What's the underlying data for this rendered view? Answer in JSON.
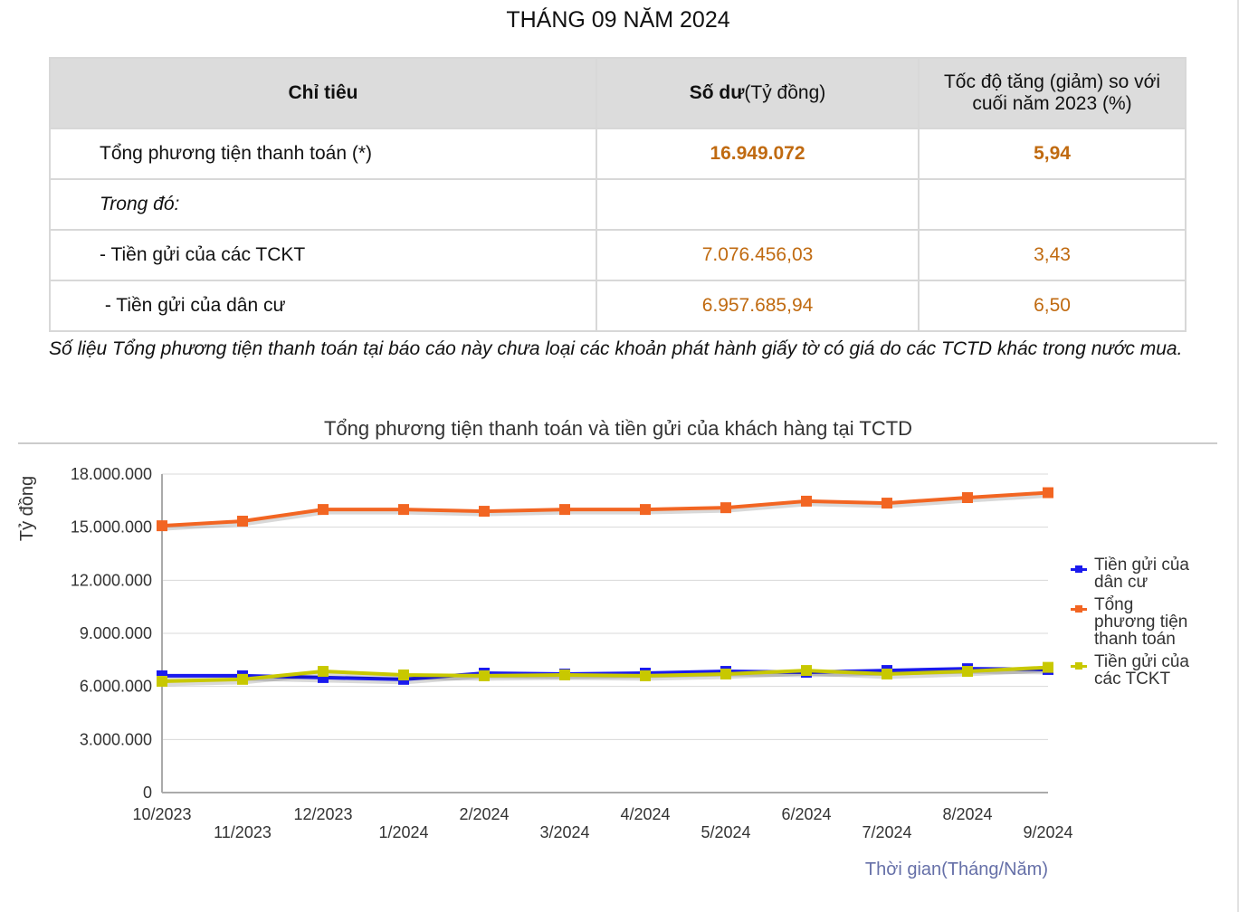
{
  "header": {
    "title": "THÁNG 09 NĂM 2024"
  },
  "table": {
    "columns": {
      "indicator": "Chỉ tiêu",
      "balance": "Số dư",
      "balance_unit": "(Tỷ đồng)",
      "growth": "Tốc độ tăng (giảm) so với cuối năm 2023 (%)"
    },
    "rows": [
      {
        "label": "Tổng phương tiện thanh toán (*)",
        "balance": "16.949.072",
        "growth": "5,94"
      },
      {
        "label": "Trong đó:"
      },
      {
        "label": "- Tiền gửi của các TCKT",
        "balance": "7.076.456,03",
        "growth": "3,43"
      },
      {
        "label": " - Tiền gửi của dân cư",
        "balance": "6.957.685,94",
        "growth": "6,50"
      }
    ]
  },
  "note": "Số liệu Tổng phương tiện thanh toán tại báo cáo này chưa loại các khoản phát hành giấy tờ có giá do các TCTD khác trong nước mua.",
  "chart_data": {
    "type": "line",
    "title": "Tổng phương tiện thanh toán và tiền gửi của khách hàng tại TCTD",
    "y_label": "Tỷ đồng",
    "x_label": "Thời gian(Tháng/Năm)",
    "categories": [
      "10/2023",
      "11/2023",
      "12/2023",
      "1/2024",
      "2/2024",
      "3/2024",
      "4/2024",
      "5/2024",
      "6/2024",
      "7/2024",
      "8/2024",
      "9/2024"
    ],
    "series": [
      {
        "name": "Tiền gửi của dân cư",
        "color": "#1a1aee",
        "values": [
          6600000,
          6600000,
          6500000,
          6400000,
          6750000,
          6700000,
          6750000,
          6850000,
          6800000,
          6900000,
          7000000,
          6957686
        ]
      },
      {
        "name": "Tổng phương tiện thanh toán",
        "color": "#f26522",
        "values": [
          15080000,
          15340000,
          16000000,
          16000000,
          15900000,
          16000000,
          16000000,
          16100000,
          16470000,
          16360000,
          16670000,
          16949072
        ]
      },
      {
        "name": "Tiền gửi của các TCKT",
        "color": "#c8c800",
        "values": [
          6290000,
          6400000,
          6850000,
          6650000,
          6600000,
          6650000,
          6600000,
          6700000,
          6900000,
          6700000,
          6850000,
          7076456
        ]
      }
    ],
    "ylim": [
      0,
      18000000
    ],
    "yticks": [
      0,
      {
        "value": 3000000,
        "label": "3.000.000"
      },
      {
        "value": 6000000,
        "label": "6.000.000"
      },
      {
        "value": 9000000,
        "label": "9.000.000"
      },
      {
        "value": 12000000,
        "label": "12.000.000"
      },
      {
        "value": 15000000,
        "label": "15.000.000"
      },
      {
        "value": 18000000,
        "label": "18.000.000"
      }
    ],
    "grid": true,
    "legend": "right"
  }
}
